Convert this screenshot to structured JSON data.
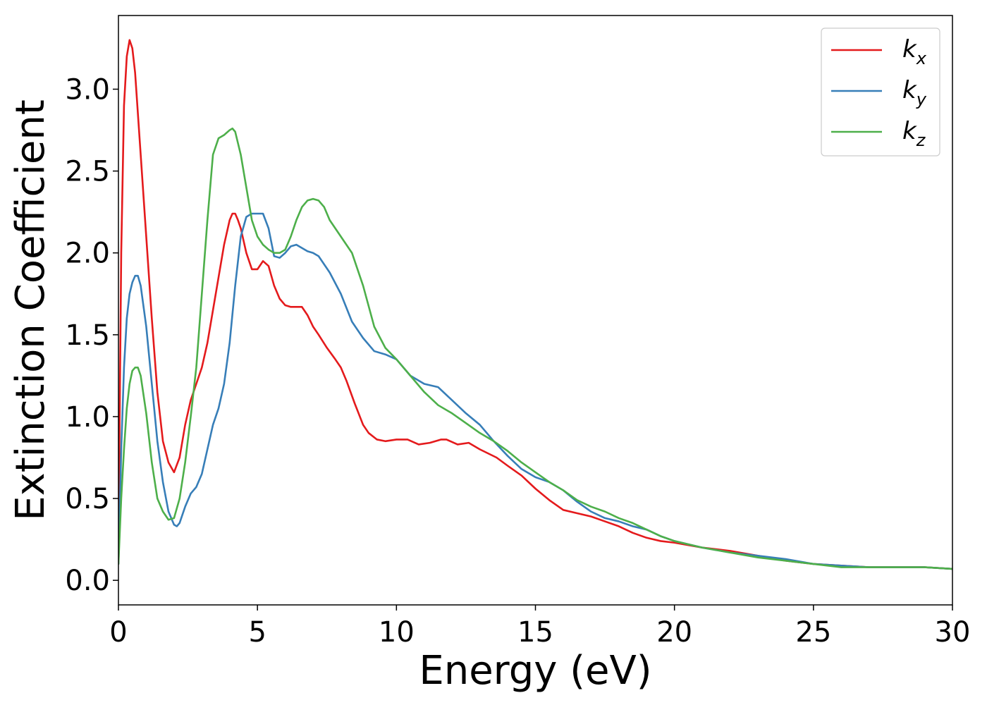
{
  "chart_data": {
    "type": "line",
    "title": "",
    "xlabel": "Energy (eV)",
    "ylabel": "Extinction Coefficient",
    "xlim": [
      0,
      30
    ],
    "ylim": [
      -0.15,
      3.45
    ],
    "xticks": [
      "0",
      "5",
      "10",
      "15",
      "20",
      "25",
      "30"
    ],
    "yticks": [
      "0.0",
      "0.5",
      "1.0",
      "1.5",
      "2.0",
      "2.5",
      "3.0"
    ],
    "grid": false,
    "legend": {
      "position": "top-right"
    },
    "series": [
      {
        "name": "k",
        "subscript": "x",
        "color": "#e41a1c",
        "x": [
          0,
          0.1,
          0.2,
          0.3,
          0.4,
          0.5,
          0.6,
          0.8,
          1.0,
          1.2,
          1.4,
          1.6,
          1.8,
          2.0,
          2.2,
          2.4,
          2.6,
          2.8,
          3.0,
          3.2,
          3.4,
          3.6,
          3.8,
          4.0,
          4.1,
          4.2,
          4.3,
          4.4,
          4.6,
          4.8,
          5.0,
          5.2,
          5.4,
          5.6,
          5.8,
          6.0,
          6.2,
          6.4,
          6.6,
          6.8,
          7.0,
          7.2,
          7.5,
          7.8,
          8.0,
          8.2,
          8.5,
          8.8,
          9.0,
          9.3,
          9.6,
          10.0,
          10.4,
          10.8,
          11.2,
          11.6,
          11.8,
          12.2,
          12.6,
          13.0,
          13.6,
          14.0,
          14.5,
          15.0,
          15.5,
          16.0,
          16.5,
          17.0,
          17.5,
          18.0,
          18.5,
          19.0,
          19.5,
          20.0,
          21.0,
          22.0,
          23.0,
          24.0,
          25.0,
          26.0,
          27.0,
          28.0,
          29.0,
          30.0
        ],
        "values": [
          0.2,
          2.0,
          2.9,
          3.2,
          3.3,
          3.25,
          3.1,
          2.6,
          2.1,
          1.6,
          1.15,
          0.85,
          0.72,
          0.66,
          0.75,
          0.95,
          1.1,
          1.2,
          1.3,
          1.45,
          1.65,
          1.85,
          2.05,
          2.2,
          2.24,
          2.24,
          2.2,
          2.15,
          2.0,
          1.9,
          1.9,
          1.95,
          1.92,
          1.8,
          1.72,
          1.68,
          1.67,
          1.67,
          1.67,
          1.62,
          1.55,
          1.5,
          1.42,
          1.35,
          1.3,
          1.22,
          1.08,
          0.95,
          0.9,
          0.86,
          0.85,
          0.86,
          0.86,
          0.83,
          0.84,
          0.86,
          0.86,
          0.83,
          0.84,
          0.8,
          0.75,
          0.7,
          0.64,
          0.56,
          0.49,
          0.43,
          0.41,
          0.39,
          0.36,
          0.33,
          0.29,
          0.26,
          0.24,
          0.23,
          0.2,
          0.18,
          0.15,
          0.12,
          0.1,
          0.09,
          0.08,
          0.08,
          0.08,
          0.07
        ]
      },
      {
        "name": "k",
        "subscript": "y",
        "color": "#377eb8",
        "x": [
          0,
          0.1,
          0.2,
          0.3,
          0.4,
          0.5,
          0.6,
          0.7,
          0.8,
          1.0,
          1.2,
          1.4,
          1.6,
          1.8,
          2.0,
          2.1,
          2.2,
          2.4,
          2.6,
          2.8,
          3.0,
          3.2,
          3.4,
          3.6,
          3.8,
          4.0,
          4.2,
          4.4,
          4.6,
          4.8,
          5.0,
          5.2,
          5.4,
          5.6,
          5.8,
          6.0,
          6.2,
          6.4,
          6.6,
          6.8,
          7.0,
          7.2,
          7.6,
          8.0,
          8.4,
          8.8,
          9.2,
          9.6,
          10.0,
          10.5,
          11.0,
          11.5,
          12.0,
          12.5,
          13.0,
          13.5,
          14.0,
          14.5,
          15.0,
          15.5,
          16.0,
          16.5,
          17.0,
          17.5,
          18.0,
          18.5,
          19.0,
          19.5,
          20.0,
          21.0,
          22.0,
          23.0,
          24.0,
          25.0,
          26.0,
          27.0,
          28.0,
          29.0,
          30.0
        ],
        "values": [
          0.1,
          0.8,
          1.3,
          1.6,
          1.75,
          1.82,
          1.86,
          1.86,
          1.8,
          1.55,
          1.2,
          0.85,
          0.6,
          0.42,
          0.34,
          0.33,
          0.35,
          0.45,
          0.53,
          0.57,
          0.65,
          0.8,
          0.95,
          1.05,
          1.2,
          1.45,
          1.8,
          2.1,
          2.22,
          2.24,
          2.24,
          2.24,
          2.15,
          1.98,
          1.97,
          2.0,
          2.04,
          2.05,
          2.03,
          2.01,
          2.0,
          1.98,
          1.88,
          1.75,
          1.58,
          1.48,
          1.4,
          1.38,
          1.35,
          1.25,
          1.2,
          1.18,
          1.1,
          1.02,
          0.95,
          0.85,
          0.76,
          0.68,
          0.63,
          0.6,
          0.55,
          0.48,
          0.42,
          0.38,
          0.36,
          0.33,
          0.31,
          0.27,
          0.24,
          0.2,
          0.17,
          0.15,
          0.13,
          0.1,
          0.09,
          0.08,
          0.08,
          0.08,
          0.07
        ]
      },
      {
        "name": "k",
        "subscript": "z",
        "color": "#4daf4a",
        "x": [
          0,
          0.1,
          0.2,
          0.3,
          0.4,
          0.5,
          0.6,
          0.7,
          0.8,
          1.0,
          1.2,
          1.4,
          1.6,
          1.8,
          2.0,
          2.2,
          2.4,
          2.6,
          2.8,
          3.0,
          3.2,
          3.4,
          3.6,
          3.8,
          4.0,
          4.1,
          4.2,
          4.4,
          4.6,
          4.8,
          5.0,
          5.2,
          5.4,
          5.6,
          5.8,
          6.0,
          6.2,
          6.4,
          6.6,
          6.8,
          7.0,
          7.2,
          7.4,
          7.6,
          8.0,
          8.4,
          8.8,
          9.2,
          9.6,
          10.0,
          10.5,
          11.0,
          11.5,
          12.0,
          12.5,
          13.0,
          13.5,
          14.0,
          14.5,
          15.0,
          15.5,
          16.0,
          16.5,
          17.0,
          17.5,
          18.0,
          18.5,
          19.0,
          19.5,
          20.0,
          21.0,
          22.0,
          23.0,
          24.0,
          25.0,
          26.0,
          27.0,
          28.0,
          29.0,
          30.0
        ],
        "values": [
          0.1,
          0.5,
          0.8,
          1.05,
          1.2,
          1.28,
          1.3,
          1.3,
          1.25,
          1.02,
          0.72,
          0.5,
          0.42,
          0.37,
          0.38,
          0.5,
          0.72,
          1.0,
          1.3,
          1.75,
          2.2,
          2.6,
          2.7,
          2.72,
          2.75,
          2.76,
          2.74,
          2.6,
          2.4,
          2.2,
          2.1,
          2.05,
          2.02,
          2.0,
          2.0,
          2.02,
          2.1,
          2.2,
          2.28,
          2.32,
          2.33,
          2.32,
          2.28,
          2.2,
          2.1,
          2.0,
          1.8,
          1.55,
          1.42,
          1.35,
          1.25,
          1.15,
          1.07,
          1.02,
          0.96,
          0.9,
          0.85,
          0.79,
          0.72,
          0.66,
          0.6,
          0.55,
          0.49,
          0.45,
          0.42,
          0.38,
          0.35,
          0.31,
          0.27,
          0.24,
          0.2,
          0.17,
          0.14,
          0.12,
          0.1,
          0.08,
          0.08,
          0.08,
          0.08,
          0.07
        ]
      }
    ]
  }
}
